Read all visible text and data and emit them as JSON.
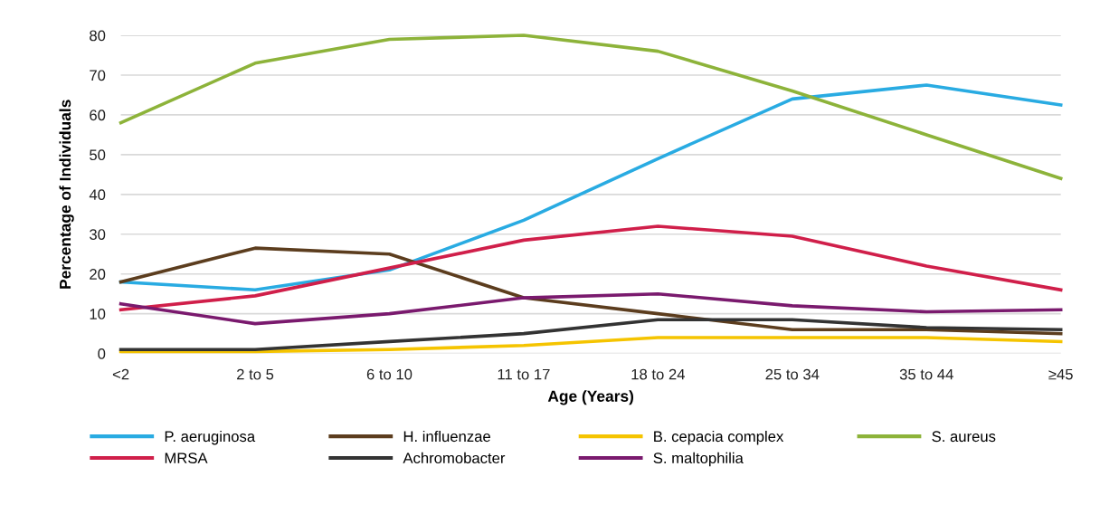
{
  "chart_data": {
    "type": "line",
    "xlabel": "Age (Years)",
    "ylabel": "Percentage of Individuals",
    "categories": [
      "<2",
      "2 to 5",
      "6 to 10",
      "11 to 17",
      "18 to 24",
      "25 to 34",
      "35 to 44",
      "≥45"
    ],
    "ylim": [
      0,
      80
    ],
    "yticks": [
      0,
      10,
      20,
      30,
      40,
      50,
      60,
      70,
      80
    ],
    "grid": "y",
    "legend": "bottom",
    "marker": "none",
    "line_style": "solid",
    "series": [
      {
        "name": "P. aeruginosa",
        "color": "#29abe2",
        "values": [
          18,
          16,
          21,
          33.5,
          49,
          64,
          67.5,
          62.5
        ]
      },
      {
        "name": "H. influenzae",
        "color": "#5c3d1e",
        "values": [
          18,
          26.5,
          25,
          14,
          10,
          6,
          6,
          5
        ]
      },
      {
        "name": "B. cepacia complex",
        "color": "#f5c400",
        "values": [
          0.5,
          0.5,
          1,
          2,
          4,
          4,
          4,
          3
        ]
      },
      {
        "name": "S. aureus",
        "color": "#8db33a",
        "values": [
          58,
          73,
          79,
          80,
          76,
          66,
          55,
          44
        ]
      },
      {
        "name": "MRSA",
        "color": "#d01f4a",
        "values": [
          11,
          14.5,
          21.5,
          28.5,
          32,
          29.5,
          22,
          16
        ]
      },
      {
        "name": "Achromobacter",
        "color": "#333333",
        "values": [
          1,
          1,
          3,
          5,
          8.5,
          8.5,
          6.5,
          6
        ]
      },
      {
        "name": "S. maltophilia",
        "color": "#7a1a6e",
        "values": [
          12.5,
          7.5,
          10,
          14,
          15,
          12,
          10.5,
          11
        ]
      }
    ]
  }
}
